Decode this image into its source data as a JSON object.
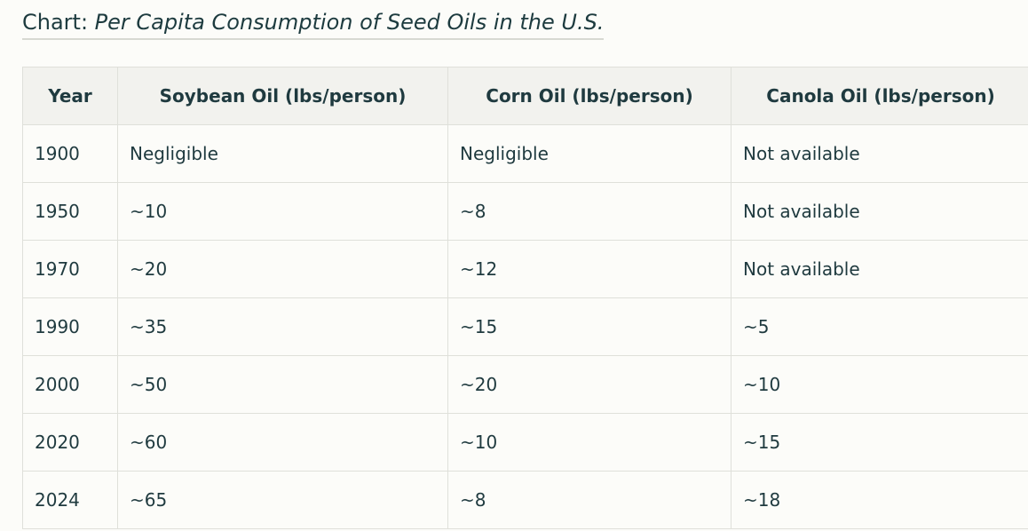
{
  "heading": {
    "prefix": "Chart: ",
    "title": "Per Capita Consumption of Seed Oils in the U.S."
  },
  "table": {
    "headers": [
      "Year",
      "Soybean Oil (lbs/person)",
      "Corn Oil (lbs/person)",
      "Canola Oil (lbs/person)"
    ],
    "rows": [
      [
        "1900",
        "Negligible",
        "Negligible",
        "Not available"
      ],
      [
        "1950",
        "~10",
        "~8",
        "Not available"
      ],
      [
        "1970",
        "~20",
        "~12",
        "Not available"
      ],
      [
        "1990",
        "~35",
        "~15",
        "~5"
      ],
      [
        "2000",
        "~50",
        "~20",
        "~10"
      ],
      [
        "2020",
        "~60",
        "~10",
        "~15"
      ],
      [
        "2024",
        "~65",
        "~8",
        "~18"
      ]
    ]
  }
}
